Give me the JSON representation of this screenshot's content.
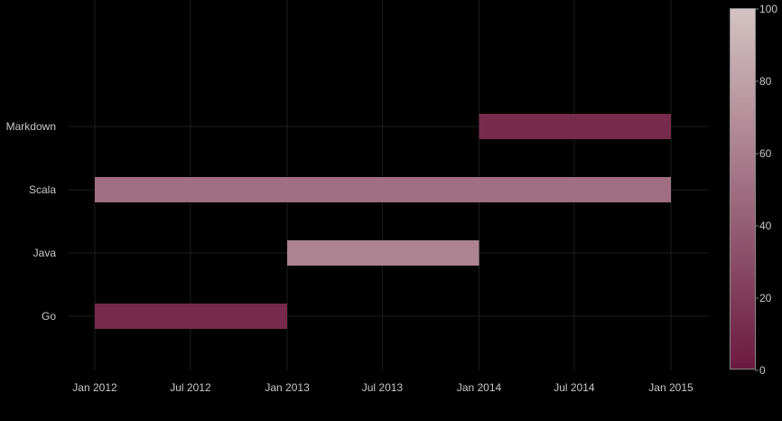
{
  "chart_data": {
    "type": "gantt",
    "title": "",
    "xlabel": "",
    "ylabel": "",
    "x_ticks": [
      "Jan 2012",
      "Jul 2012",
      "Jan 2013",
      "Jul 2013",
      "Jan 2014",
      "Jul 2014",
      "Jan 2015"
    ],
    "x_tick_dates": [
      "2012-01-01",
      "2012-07-01",
      "2013-01-01",
      "2013-07-01",
      "2014-01-01",
      "2014-07-01",
      "2015-01-01"
    ],
    "categories": [
      "Go",
      "Java",
      "Scala",
      "Markdown"
    ],
    "tasks": [
      {
        "task": "Go",
        "start": "2012-01-01",
        "end": "2013-01-01",
        "value": 10
      },
      {
        "task": "Java",
        "start": "2013-01-01",
        "end": "2014-01-01",
        "value": 62
      },
      {
        "task": "Scala",
        "start": "2012-01-01",
        "end": "2015-01-01",
        "value": 50
      },
      {
        "task": "Markdown",
        "start": "2014-01-01",
        "end": "2015-01-01",
        "value": 10
      }
    ],
    "colorbar": {
      "range": [
        0,
        100
      ],
      "ticks": [
        "0",
        "20",
        "40",
        "60",
        "80",
        "100"
      ],
      "colors": [
        "#6b1a3f",
        "#d4c3c3"
      ]
    },
    "grid": true,
    "background": "#000000",
    "grid_color": "#1e1e1e",
    "text_color": "#c8c8c8"
  }
}
